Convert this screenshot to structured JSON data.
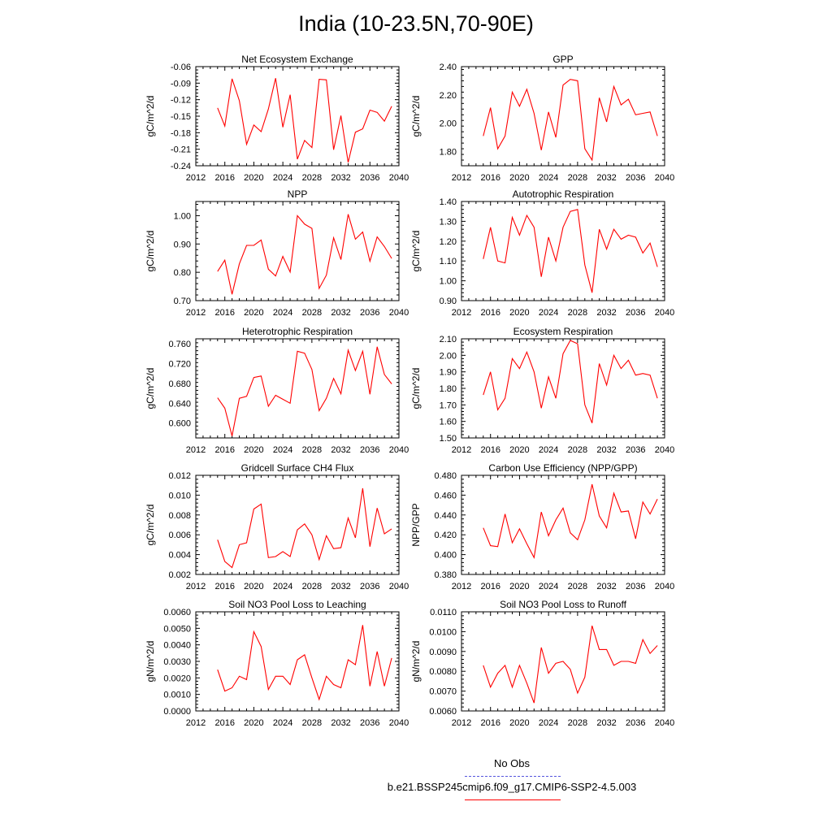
{
  "title": "India (10-23.5N,70-90E)",
  "colors": {
    "series": "#ff0000",
    "obs": "#5555dd",
    "axis": "#000000"
  },
  "legend": {
    "obs_label": "No Obs",
    "model_label": "b.e21.BSSP245cmip6.f09_g17.CMIP6-SSP2-4.5.003"
  },
  "chart_data": [
    {
      "type": "line",
      "title": "Net Ecosystem Exchange",
      "ylabel": "gC/m^2/d",
      "xlabel": "",
      "xlim": [
        2012,
        2040
      ],
      "ylim": [
        -0.24,
        -0.06
      ],
      "xticks": [
        "2012",
        "2016",
        "2020",
        "2024",
        "2028",
        "2032",
        "2036",
        "2040"
      ],
      "yticks": [
        "-0.24",
        "-0.21",
        "-0.18",
        "-0.15",
        "-0.12",
        "-0.09",
        "-0.06"
      ],
      "x": [
        2015,
        2016,
        2017,
        2018,
        2019,
        2020,
        2021,
        2022,
        2023,
        2024,
        2025,
        2026,
        2027,
        2028,
        2029,
        2030,
        2031,
        2032,
        2033,
        2034,
        2035,
        2036,
        2037,
        2038,
        2039
      ],
      "values": [
        -0.135,
        -0.168,
        -0.082,
        -0.122,
        -0.201,
        -0.166,
        -0.178,
        -0.137,
        -0.081,
        -0.17,
        -0.111,
        -0.228,
        -0.194,
        -0.207,
        -0.083,
        -0.084,
        -0.211,
        -0.149,
        -0.234,
        -0.179,
        -0.173,
        -0.139,
        -0.143,
        -0.159,
        -0.132
      ]
    },
    {
      "type": "line",
      "title": "GPP",
      "ylabel": "gC/m^2/d",
      "xlabel": "",
      "xlim": [
        2012,
        2040
      ],
      "ylim": [
        1.7,
        2.4
      ],
      "xticks": [
        "2012",
        "2016",
        "2020",
        "2024",
        "2028",
        "2032",
        "2036",
        "2040"
      ],
      "yticks": [
        "1.80",
        "2.00",
        "2.20",
        "2.40"
      ],
      "x": [
        2015,
        2016,
        2017,
        2018,
        2019,
        2020,
        2021,
        2022,
        2023,
        2024,
        2025,
        2026,
        2027,
        2028,
        2029,
        2030,
        2031,
        2032,
        2033,
        2034,
        2035,
        2036,
        2037,
        2038,
        2039
      ],
      "values": [
        1.91,
        2.11,
        1.82,
        1.91,
        2.22,
        2.12,
        2.24,
        2.07,
        1.81,
        2.08,
        1.9,
        2.27,
        2.31,
        2.3,
        1.82,
        1.74,
        2.18,
        2.01,
        2.26,
        2.13,
        2.17,
        2.06,
        2.07,
        2.08,
        1.91
      ]
    },
    {
      "type": "line",
      "title": "NPP",
      "ylabel": "gC/m^2/d",
      "xlabel": "",
      "xlim": [
        2012,
        2040
      ],
      "ylim": [
        0.7,
        1.05
      ],
      "xticks": [
        "2012",
        "2016",
        "2020",
        "2024",
        "2028",
        "2032",
        "2036",
        "2040"
      ],
      "yticks": [
        "0.70",
        "0.80",
        "0.90",
        "1.00"
      ],
      "x": [
        2015,
        2016,
        2017,
        2018,
        2019,
        2020,
        2021,
        2022,
        2023,
        2024,
        2025,
        2026,
        2027,
        2028,
        2029,
        2030,
        2031,
        2032,
        2033,
        2034,
        2035,
        2036,
        2037,
        2038,
        2039
      ],
      "values": [
        0.803,
        0.843,
        0.722,
        0.83,
        0.895,
        0.895,
        0.914,
        0.811,
        0.787,
        0.856,
        0.801,
        1.0,
        0.97,
        0.955,
        0.743,
        0.79,
        0.922,
        0.845,
        1.005,
        0.917,
        0.942,
        0.839,
        0.925,
        0.891,
        0.849
      ]
    },
    {
      "type": "line",
      "title": "Autotrophic Respiration",
      "ylabel": "gC/m^2/d",
      "xlabel": "",
      "xlim": [
        2012,
        2040
      ],
      "ylim": [
        0.9,
        1.4
      ],
      "xticks": [
        "2012",
        "2016",
        "2020",
        "2024",
        "2028",
        "2032",
        "2036",
        "2040"
      ],
      "yticks": [
        "0.90",
        "1.00",
        "1.10",
        "1.20",
        "1.30",
        "1.40"
      ],
      "x": [
        2015,
        2016,
        2017,
        2018,
        2019,
        2020,
        2021,
        2022,
        2023,
        2024,
        2025,
        2026,
        2027,
        2028,
        2029,
        2030,
        2031,
        2032,
        2033,
        2034,
        2035,
        2036,
        2037,
        2038,
        2039
      ],
      "values": [
        1.11,
        1.27,
        1.1,
        1.09,
        1.32,
        1.23,
        1.33,
        1.27,
        1.02,
        1.22,
        1.1,
        1.27,
        1.35,
        1.36,
        1.08,
        0.94,
        1.26,
        1.16,
        1.26,
        1.21,
        1.23,
        1.22,
        1.14,
        1.19,
        1.07
      ]
    },
    {
      "type": "line",
      "title": "Heterotrophic Respiration",
      "ylabel": "gC/m^2/d",
      "xlabel": "",
      "xlim": [
        2012,
        2040
      ],
      "ylim": [
        0.57,
        0.77
      ],
      "xticks": [
        "2012",
        "2016",
        "2020",
        "2024",
        "2028",
        "2032",
        "2036",
        "2040"
      ],
      "yticks": [
        "0.600",
        "0.640",
        "0.680",
        "0.720",
        "0.760"
      ],
      "x": [
        2015,
        2016,
        2017,
        2018,
        2019,
        2020,
        2021,
        2022,
        2023,
        2024,
        2025,
        2026,
        2027,
        2028,
        2029,
        2030,
        2031,
        2032,
        2033,
        2034,
        2035,
        2036,
        2037,
        2038,
        2039
      ],
      "values": [
        0.651,
        0.63,
        0.574,
        0.65,
        0.654,
        0.692,
        0.695,
        0.634,
        0.656,
        0.648,
        0.64,
        0.745,
        0.741,
        0.708,
        0.625,
        0.65,
        0.69,
        0.659,
        0.747,
        0.706,
        0.745,
        0.658,
        0.754,
        0.698,
        0.679
      ]
    },
    {
      "type": "line",
      "title": "Ecosystem Respiration",
      "ylabel": "gC/m^2/d",
      "xlabel": "",
      "xlim": [
        2012,
        2040
      ],
      "ylim": [
        1.5,
        2.1
      ],
      "xticks": [
        "2012",
        "2016",
        "2020",
        "2024",
        "2028",
        "2032",
        "2036",
        "2040"
      ],
      "yticks": [
        "1.50",
        "1.60",
        "1.70",
        "1.80",
        "1.90",
        "2.00",
        "2.10"
      ],
      "x": [
        2015,
        2016,
        2017,
        2018,
        2019,
        2020,
        2021,
        2022,
        2023,
        2024,
        2025,
        2026,
        2027,
        2028,
        2029,
        2030,
        2031,
        2032,
        2033,
        2034,
        2035,
        2036,
        2037,
        2038,
        2039
      ],
      "values": [
        1.76,
        1.9,
        1.67,
        1.74,
        1.98,
        1.92,
        2.02,
        1.9,
        1.68,
        1.87,
        1.74,
        2.01,
        2.09,
        2.07,
        1.7,
        1.59,
        1.95,
        1.82,
        2.0,
        1.92,
        1.97,
        1.88,
        1.89,
        1.88,
        1.74
      ]
    },
    {
      "type": "line",
      "title": "Gridcell Surface CH4 Flux",
      "ylabel": "gC/m^2/d",
      "xlabel": "",
      "xlim": [
        2012,
        2040
      ],
      "ylim": [
        0.002,
        0.012
      ],
      "xticks": [
        "2012",
        "2016",
        "2020",
        "2024",
        "2028",
        "2032",
        "2036",
        "2040"
      ],
      "yticks": [
        "0.002",
        "0.004",
        "0.006",
        "0.008",
        "0.010",
        "0.012"
      ],
      "x": [
        2015,
        2016,
        2017,
        2018,
        2019,
        2020,
        2021,
        2022,
        2023,
        2024,
        2025,
        2026,
        2027,
        2028,
        2029,
        2030,
        2031,
        2032,
        2033,
        2034,
        2035,
        2036,
        2037,
        2038,
        2039
      ],
      "values": [
        0.0055,
        0.0033,
        0.0027,
        0.005,
        0.0052,
        0.0086,
        0.0091,
        0.0037,
        0.0038,
        0.0043,
        0.0038,
        0.0065,
        0.0071,
        0.006,
        0.0035,
        0.0059,
        0.0046,
        0.0047,
        0.0077,
        0.0057,
        0.0107,
        0.0048,
        0.0087,
        0.0061,
        0.0066
      ]
    },
    {
      "type": "line",
      "title": "Carbon Use Efficiency (NPP/GPP)",
      "ylabel": "NPP/GPP",
      "xlabel": "",
      "xlim": [
        2012,
        2040
      ],
      "ylim": [
        0.38,
        0.48
      ],
      "xticks": [
        "2012",
        "2016",
        "2020",
        "2024",
        "2028",
        "2032",
        "2036",
        "2040"
      ],
      "yticks": [
        "0.380",
        "0.400",
        "0.420",
        "0.440",
        "0.460",
        "0.480"
      ],
      "x": [
        2015,
        2016,
        2017,
        2018,
        2019,
        2020,
        2021,
        2022,
        2023,
        2024,
        2025,
        2026,
        2027,
        2028,
        2029,
        2030,
        2031,
        2032,
        2033,
        2034,
        2035,
        2036,
        2037,
        2038,
        2039
      ],
      "values": [
        0.427,
        0.409,
        0.408,
        0.441,
        0.412,
        0.426,
        0.411,
        0.397,
        0.443,
        0.419,
        0.435,
        0.447,
        0.422,
        0.415,
        0.435,
        0.471,
        0.439,
        0.427,
        0.462,
        0.443,
        0.444,
        0.416,
        0.453,
        0.441,
        0.456
      ]
    },
    {
      "type": "line",
      "title": "Soil NO3 Pool Loss to Leaching",
      "ylabel": "gN/m^2/d",
      "xlabel": "",
      "xlim": [
        2012,
        2040
      ],
      "ylim": [
        0.0,
        0.006
      ],
      "xticks": [
        "2012",
        "2016",
        "2020",
        "2024",
        "2028",
        "2032",
        "2036",
        "2040"
      ],
      "yticks": [
        "0.0000",
        "0.0010",
        "0.0020",
        "0.0030",
        "0.0040",
        "0.0050",
        "0.0060"
      ],
      "x": [
        2015,
        2016,
        2017,
        2018,
        2019,
        2020,
        2021,
        2022,
        2023,
        2024,
        2025,
        2026,
        2027,
        2028,
        2029,
        2030,
        2031,
        2032,
        2033,
        2034,
        2035,
        2036,
        2037,
        2038,
        2039
      ],
      "values": [
        0.0025,
        0.0012,
        0.0014,
        0.0021,
        0.0019,
        0.0048,
        0.0039,
        0.0013,
        0.0021,
        0.0021,
        0.0016,
        0.0031,
        0.0034,
        0.002,
        0.0007,
        0.0021,
        0.0016,
        0.0014,
        0.0031,
        0.0028,
        0.0052,
        0.0015,
        0.0036,
        0.0015,
        0.0032
      ]
    },
    {
      "type": "line",
      "title": "Soil NO3 Pool Loss to Runoff",
      "ylabel": "gN/m^2/d",
      "xlabel": "",
      "xlim": [
        2012,
        2040
      ],
      "ylim": [
        0.006,
        0.011
      ],
      "xticks": [
        "2012",
        "2016",
        "2020",
        "2024",
        "2028",
        "2032",
        "2036",
        "2040"
      ],
      "yticks": [
        "0.0060",
        "0.0070",
        "0.0080",
        "0.0090",
        "0.0100",
        "0.0110"
      ],
      "x": [
        2015,
        2016,
        2017,
        2018,
        2019,
        2020,
        2021,
        2022,
        2023,
        2024,
        2025,
        2026,
        2027,
        2028,
        2029,
        2030,
        2031,
        2032,
        2033,
        2034,
        2035,
        2036,
        2037,
        2038,
        2039
      ],
      "values": [
        0.0083,
        0.0072,
        0.0079,
        0.0083,
        0.0072,
        0.0083,
        0.0074,
        0.0064,
        0.0092,
        0.0079,
        0.0084,
        0.0085,
        0.0081,
        0.0069,
        0.0077,
        0.0103,
        0.0091,
        0.0091,
        0.0083,
        0.0085,
        0.0085,
        0.0084,
        0.0096,
        0.0089,
        0.0093
      ]
    }
  ]
}
